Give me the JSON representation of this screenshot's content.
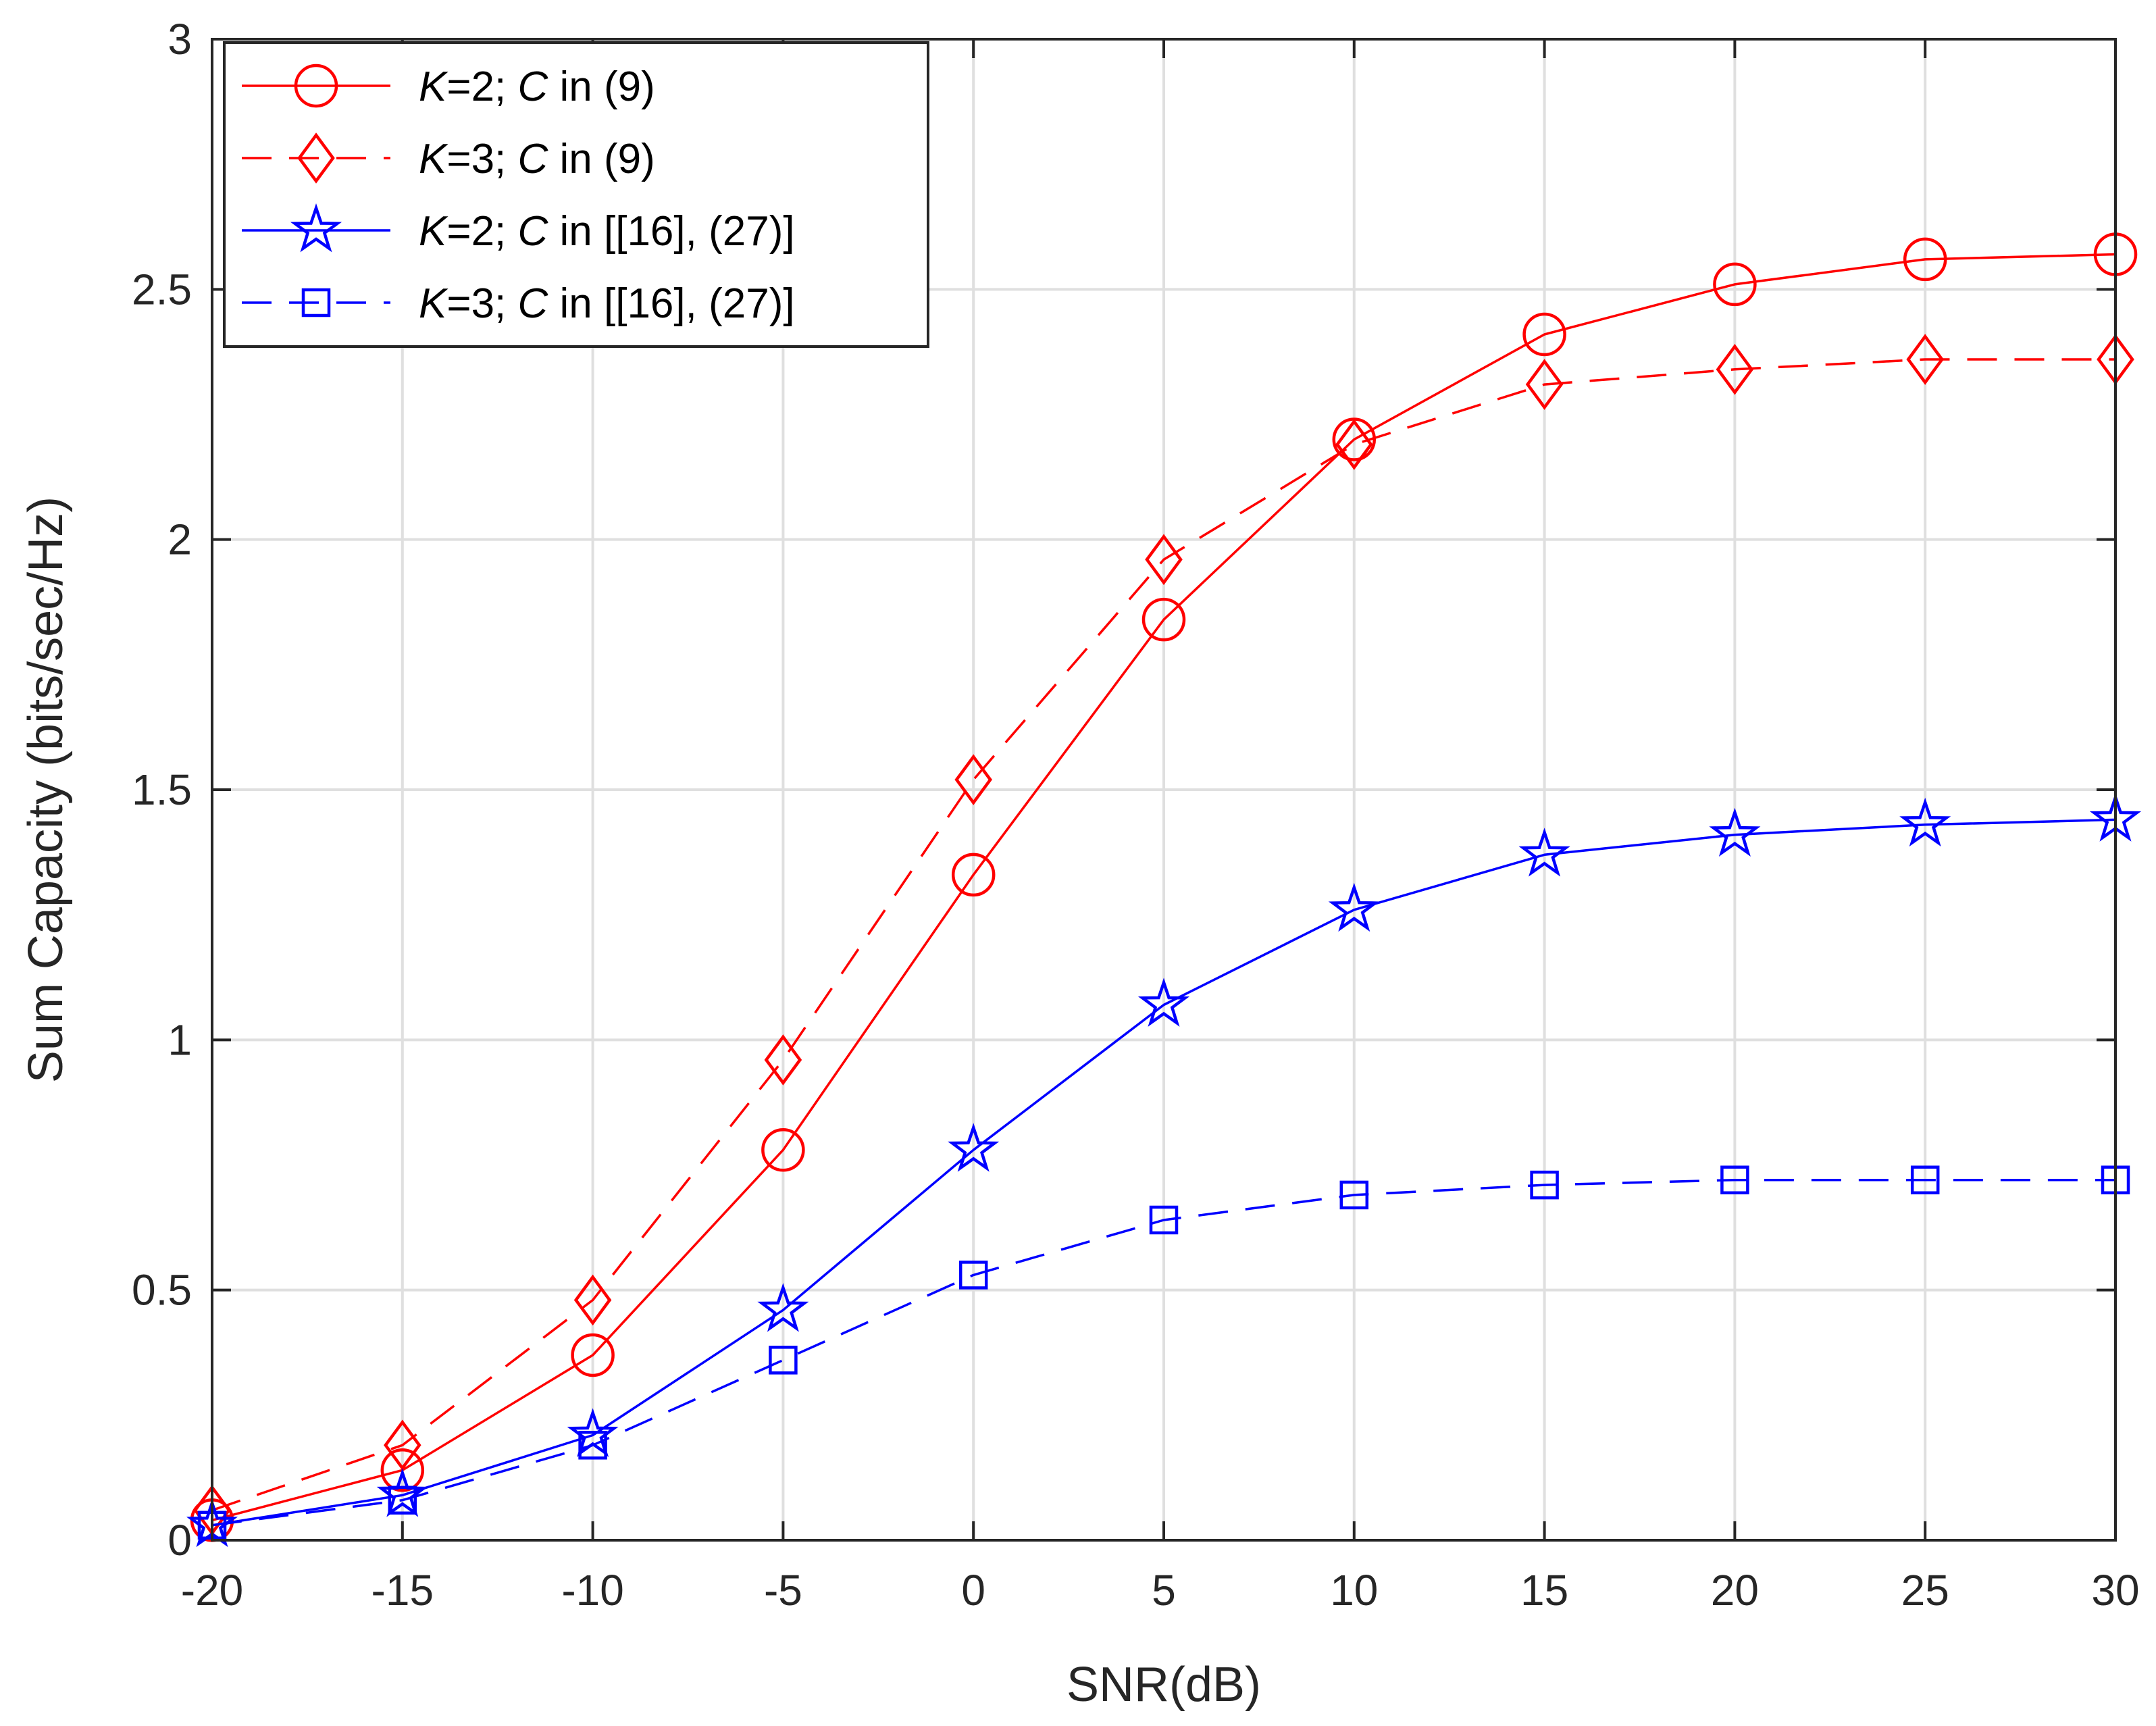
{
  "chart_data": {
    "type": "line",
    "title": "",
    "xlabel": "SNR(dB)",
    "ylabel": "Sum Capacity (bits/sec/Hz)",
    "xlim": [
      -20,
      30
    ],
    "ylim": [
      0,
      3
    ],
    "grid": true,
    "legend_position": "top-left",
    "x_ticks": [
      -20,
      -15,
      -10,
      -5,
      0,
      5,
      10,
      15,
      20,
      25,
      30
    ],
    "x_tick_labels": [
      "-20",
      "-15",
      "-10",
      "-5",
      "0",
      "5",
      "10",
      "15",
      "20",
      "25",
      "30"
    ],
    "y_ticks": [
      0,
      0.5,
      1,
      1.5,
      2,
      2.5,
      3
    ],
    "y_tick_labels": [
      "0",
      "0.5",
      "1",
      "1.5",
      "2",
      "2.5",
      "3"
    ],
    "x": [
      -20,
      -15,
      -10,
      -5,
      0,
      5,
      10,
      15,
      20,
      25,
      30
    ],
    "series": [
      {
        "name": "K=2; C in (9)",
        "legend_var": "K",
        "legend_eq": "=2; ",
        "legend_var2": "C",
        "legend_rest": " in (9)",
        "color": "#ff0000",
        "line_style": "solid",
        "marker": "circle",
        "values": [
          0.04,
          0.14,
          0.37,
          0.78,
          1.33,
          1.84,
          2.2,
          2.41,
          2.51,
          2.56,
          2.57
        ]
      },
      {
        "name": "K=3; C in (9)",
        "legend_var": "K",
        "legend_eq": "=3; ",
        "legend_var2": "C",
        "legend_rest": " in (9)",
        "color": "#ff0000",
        "line_style": "dashed",
        "marker": "diamond",
        "values": [
          0.06,
          0.19,
          0.48,
          0.96,
          1.52,
          1.96,
          2.19,
          2.31,
          2.34,
          2.36,
          2.36
        ]
      },
      {
        "name": "K=2; C in [[16], (27)]",
        "legend_var": "K",
        "legend_eq": "=2; ",
        "legend_var2": "C",
        "legend_rest": " in [[16], (27)]",
        "color": "#0000ff",
        "line_style": "solid",
        "marker": "star",
        "values": [
          0.03,
          0.09,
          0.21,
          0.46,
          0.78,
          1.07,
          1.26,
          1.37,
          1.41,
          1.43,
          1.44
        ]
      },
      {
        "name": "K=3; C in [[16], (27)]",
        "legend_var": "K",
        "legend_eq": "=3; ",
        "legend_var2": "C",
        "legend_rest": " in [[16], (27)]",
        "color": "#0000ff",
        "line_style": "dashed",
        "marker": "square",
        "values": [
          0.03,
          0.08,
          0.19,
          0.36,
          0.53,
          0.64,
          0.69,
          0.71,
          0.72,
          0.72,
          0.72
        ]
      }
    ]
  }
}
